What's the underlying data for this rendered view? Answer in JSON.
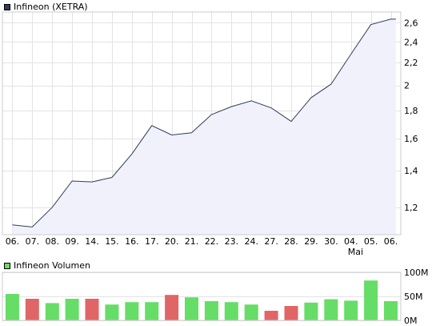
{
  "chart_data": [
    {
      "type": "area",
      "legend": "Infineon (XETRA)",
      "legend_color": "#2f3f55",
      "line_color": "#2f3f55",
      "fill_color": "#f0f1fa",
      "grid": true,
      "y_scale": "log",
      "y_ticks": [
        1.2,
        1.4,
        1.6,
        1.8,
        2.0,
        2.2,
        2.4,
        2.6
      ],
      "y_tick_labels": [
        "1,2",
        "1,4",
        "1,6",
        "1,8",
        "2",
        "2,2",
        "2,4",
        "2,6"
      ],
      "ylim": [
        1.07,
        2.72
      ],
      "x_labels": [
        "06.",
        "07.",
        "08.",
        "09.",
        "14.",
        "15.",
        "16.",
        "17.",
        "20.",
        "21.",
        "22.",
        "23.",
        "24.",
        "27.",
        "28.",
        "29.",
        "30.",
        "04.",
        "05.",
        "06."
      ],
      "x_sublabels": {
        "17": "Mai"
      },
      "x": [
        0,
        1,
        2,
        3,
        4,
        5,
        6,
        7,
        8,
        9,
        10,
        11,
        12,
        13,
        14,
        15,
        16,
        17,
        18,
        19,
        19.25
      ],
      "values": [
        1.115,
        1.105,
        1.2,
        1.34,
        1.335,
        1.36,
        1.5,
        1.69,
        1.625,
        1.64,
        1.77,
        1.83,
        1.875,
        1.82,
        1.72,
        1.9,
        2.01,
        2.28,
        2.58,
        2.64,
        2.64
      ]
    },
    {
      "type": "bar",
      "legend": "Infineon Volumen",
      "legend_color": "#66dd66",
      "up_color": "#66dd66",
      "down_color": "#e06666",
      "y_ticks": [
        0,
        50,
        100
      ],
      "y_tick_labels": [
        "0M",
        "50M",
        "100M"
      ],
      "ylim": [
        0,
        100
      ],
      "values": [
        55,
        45,
        36,
        45,
        45,
        33,
        38,
        38,
        53,
        48,
        40,
        38,
        33,
        20,
        30,
        37,
        44,
        41,
        83,
        40
      ],
      "direction": [
        "up",
        "down",
        "up",
        "up",
        "down",
        "up",
        "up",
        "up",
        "down",
        "up",
        "up",
        "up",
        "up",
        "down",
        "down",
        "up",
        "up",
        "up",
        "up",
        "up"
      ]
    }
  ]
}
